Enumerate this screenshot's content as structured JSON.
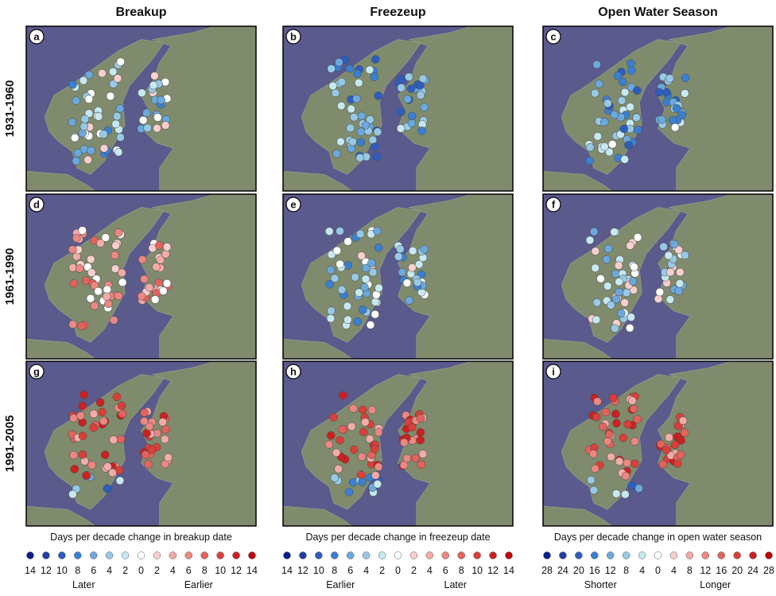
{
  "columns": [
    {
      "title": "Breakup",
      "legend": {
        "title": "Days per decade change in breakup date",
        "ticks": [
          14,
          12,
          10,
          8,
          6,
          4,
          2,
          0,
          2,
          4,
          6,
          8,
          10,
          12,
          14
        ],
        "left": "Later",
        "right": "Earlier"
      }
    },
    {
      "title": "Freezeup",
      "legend": {
        "title": "Days per decade change in freezeup date",
        "ticks": [
          14,
          12,
          10,
          8,
          6,
          4,
          2,
          0,
          2,
          4,
          6,
          8,
          10,
          12,
          14
        ],
        "left": "Earlier",
        "right": "Later"
      }
    },
    {
      "title": "Open Water Season",
      "legend": {
        "title": "Days per decade change in open water season",
        "ticks": [
          28,
          24,
          20,
          16,
          12,
          8,
          4,
          0,
          4,
          8,
          12,
          16,
          20,
          24,
          28
        ],
        "left": "Shorter",
        "right": "Longer"
      }
    }
  ],
  "rows": [
    {
      "label": "1931-1960",
      "panels": [
        "a",
        "b",
        "c"
      ]
    },
    {
      "label": "1961-1990",
      "panels": [
        "d",
        "e",
        "f"
      ]
    },
    {
      "label": "1991-2005",
      "panels": [
        "g",
        "h",
        "i"
      ]
    }
  ],
  "legend_colors": [
    "#0b1f8c",
    "#1f3fa6",
    "#2d5ebf",
    "#3a80d2",
    "#6ba9dd",
    "#97c9e6",
    "#c6e8f0",
    "#ffffff",
    "#f8cfcd",
    "#f3aba8",
    "#ec8782",
    "#e4635c",
    "#da3f38",
    "#cd2020",
    "#c00000"
  ]
}
